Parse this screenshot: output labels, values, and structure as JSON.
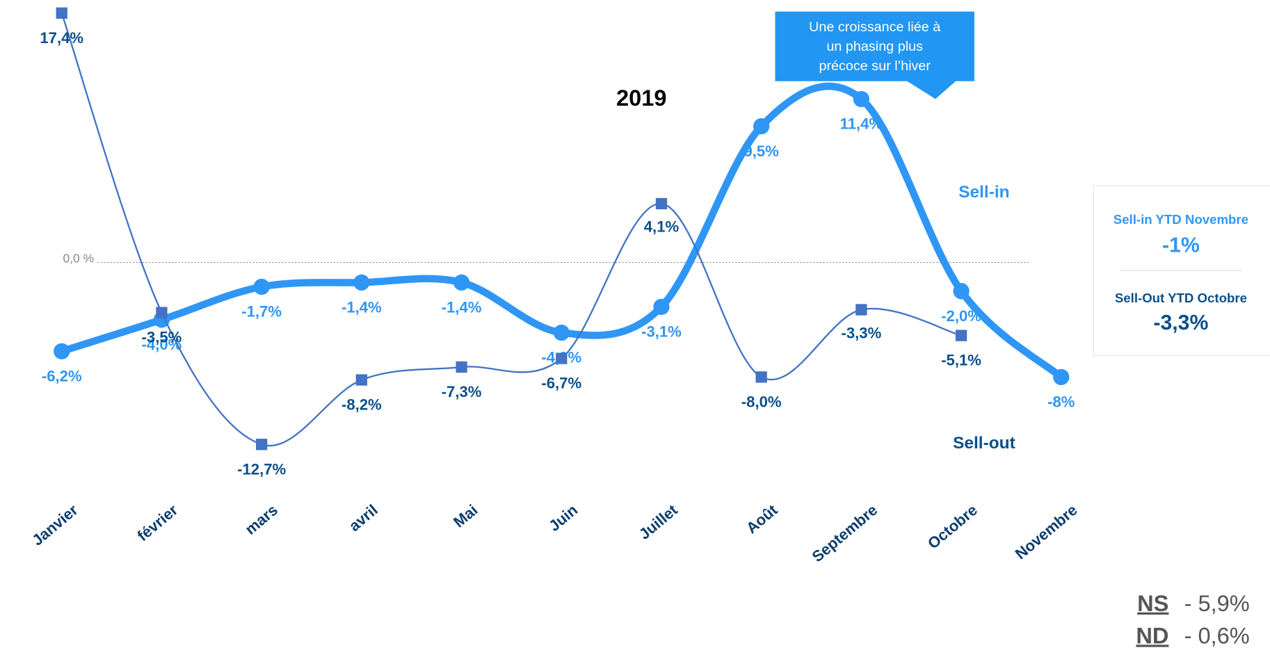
{
  "chart_data": {
    "type": "line",
    "title": "2019",
    "categories": [
      "Janvier",
      "février",
      "mars",
      "avril",
      "Mai",
      "Juin",
      "Juillet",
      "Août",
      "Septembre",
      "Octobre",
      "Novembre"
    ],
    "series": [
      {
        "name": "Sell-in",
        "color": "#2f96f5",
        "values": [
          -6.2,
          -4.0,
          -1.7,
          -1.4,
          -1.4,
          -4.9,
          -3.1,
          9.5,
          11.4,
          -2.0,
          -8
        ],
        "value_labels": [
          "-6,2%",
          "-4,0%",
          "-1,7%",
          "-1,4%",
          "-1,4%",
          "-4,9%",
          "-3,1%",
          "9,5%",
          "11,4%",
          "-2,0%",
          "-8%"
        ]
      },
      {
        "name": "Sell-out",
        "color": "#4472c4",
        "values": [
          17.4,
          -3.5,
          -12.7,
          -8.2,
          -7.3,
          -6.7,
          4.1,
          -8.0,
          -3.3,
          -5.1,
          null
        ],
        "value_labels": [
          "17,4%",
          "-3,5%",
          "-12,7%",
          "-8,2%",
          "-7,3%",
          "-6,7%",
          "4,1%",
          "-8,0%",
          "-3,3%",
          "-5,1%",
          null
        ]
      }
    ],
    "ylim": [
      -15.6,
      18.3
    ],
    "yticks": [
      {
        "value": 0,
        "label": "0,0 %"
      }
    ],
    "annotation": [
      "Une croissance liée à",
      "un phasing plus",
      "précoce sur l’hiver"
    ],
    "summary": {
      "sell_in_title": "Sell-in YTD Novembre",
      "sell_in_value": "-1%",
      "sell_out_title": "Sell-Out YTD Octobre",
      "sell_out_value": "-3,3%"
    },
    "footer": [
      {
        "key": "NS",
        "value": "- 5,9%"
      },
      {
        "key": "ND",
        "value": "- 0,6%"
      }
    ]
  }
}
